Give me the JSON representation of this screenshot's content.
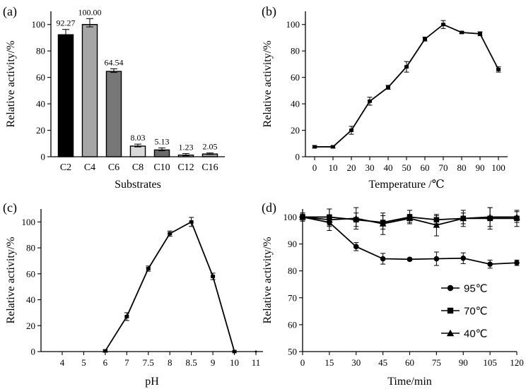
{
  "chart_data": [
    {
      "panel": "(a)",
      "type": "bar",
      "categories": [
        "C2",
        "C4",
        "C6",
        "C8",
        "C10",
        "C12",
        "C16"
      ],
      "values": [
        92.27,
        100.0,
        64.54,
        8.03,
        5.13,
        1.23,
        2.05
      ],
      "value_labels": [
        "92.27",
        "100.00",
        "64.54",
        "8.03",
        "5.13",
        "1.23",
        "2.05"
      ],
      "errors": [
        4,
        4.5,
        2,
        1.5,
        1.5,
        1.2,
        0.8
      ],
      "bar_colors": [
        "#000000",
        "#a6a6a6",
        "#777777",
        "#d9d9d9",
        "#6a6a6a",
        "#cfcfcf",
        "#9a9a9a"
      ],
      "xlabel": "Substrates",
      "ylabel": "Relative activity/%",
      "ylim": [
        0,
        110
      ],
      "yticks": [
        "0",
        "20",
        "40",
        "60",
        "80",
        "100"
      ]
    },
    {
      "panel": "(b)",
      "type": "line",
      "x": [
        0,
        10,
        20,
        30,
        40,
        50,
        60,
        70,
        80,
        90,
        100
      ],
      "values": [
        7.5,
        7.5,
        20,
        42,
        52.5,
        68,
        89,
        100,
        94,
        93,
        66
      ],
      "errors": [
        1,
        1,
        3,
        3,
        1.5,
        4,
        1.5,
        3,
        0.8,
        1.5,
        2
      ],
      "xticks": [
        "0",
        "10",
        "20",
        "30",
        "40",
        "50",
        "60",
        "70",
        "80",
        "90",
        "100"
      ],
      "yticks": [
        "0",
        "20",
        "40",
        "60",
        "80",
        "100"
      ],
      "xlabel": "Temperature /℃",
      "ylabel": "Relative activity/%",
      "xlim": [
        -5,
        105
      ],
      "ylim": [
        0,
        110
      ]
    },
    {
      "panel": "(c)",
      "type": "line",
      "x": [
        "4",
        "5",
        "6",
        "7",
        "7.5",
        "8",
        "8.5",
        "9",
        "10",
        "11"
      ],
      "values": [
        null,
        null,
        0.5,
        27,
        64,
        91,
        100,
        58,
        0,
        null
      ],
      "errors": [
        0,
        0,
        1,
        3,
        2,
        2,
        3.5,
        2.5,
        0,
        0
      ],
      "xticks": [
        "4",
        "5",
        "6",
        "7",
        "7.5",
        "8",
        "8.5",
        "9",
        "10",
        "11"
      ],
      "yticks": [
        "0",
        "20",
        "40",
        "60",
        "80",
        "100"
      ],
      "xlabel": "pH",
      "ylabel": "Relative activity/%",
      "ylim": [
        0,
        110
      ]
    },
    {
      "panel": "(d)",
      "type": "line",
      "x": [
        0,
        15,
        30,
        45,
        60,
        75,
        90,
        105,
        120
      ],
      "xticks": [
        "0",
        "15",
        "30",
        "45",
        "60",
        "75",
        "90",
        "105",
        "120"
      ],
      "yticks": [
        "50",
        "60",
        "70",
        "80",
        "90",
        "100"
      ],
      "xlabel": "Time/min",
      "ylabel": "Relative activity/%",
      "xlim": [
        0,
        120
      ],
      "ylim": [
        50,
        103
      ],
      "legend_position": "bottom-right",
      "series": [
        {
          "name": "95℃",
          "marker": "circle",
          "values": [
            100,
            98,
            89,
            84.5,
            84.3,
            84.5,
            84.7,
            82.5,
            83
          ],
          "errors": [
            1,
            1.5,
            1.5,
            2,
            0.5,
            2.5,
            2,
            1.5,
            1
          ]
        },
        {
          "name": "70℃",
          "marker": "square",
          "values": [
            100,
            100,
            99,
            98,
            100,
            99,
            99.5,
            99.5,
            99.5
          ],
          "errors": [
            1.5,
            3,
            2.5,
            2.5,
            2.5,
            1.5,
            2,
            4,
            3
          ]
        },
        {
          "name": "40℃",
          "marker": "triangle",
          "values": [
            100,
            99,
            99.5,
            97.5,
            99.5,
            97,
            99.5,
            100,
            100
          ],
          "errors": [
            1.5,
            4,
            4,
            4,
            1.5,
            4,
            3,
            3.5,
            2
          ]
        }
      ]
    }
  ]
}
